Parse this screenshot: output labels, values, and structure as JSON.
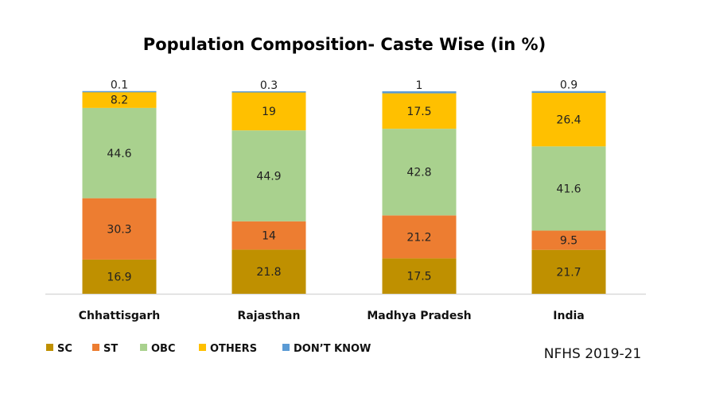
{
  "chart_data": {
    "type": "bar",
    "stacked": true,
    "title": "Population Composition- Caste Wise (in %)",
    "categories": [
      "Chhattisgarh",
      "Rajasthan",
      "Madhya Pradesh",
      "India"
    ],
    "series": [
      {
        "name": "SC",
        "color": "#BF9000",
        "values": [
          16.9,
          21.8,
          17.5,
          21.7
        ]
      },
      {
        "name": "ST",
        "color": "#ED7D31",
        "values": [
          30.3,
          14,
          21.2,
          9.5
        ]
      },
      {
        "name": "OBC",
        "color": "#A9D18E",
        "values": [
          44.6,
          44.9,
          42.8,
          41.6
        ]
      },
      {
        "name": "OTHERS",
        "color": "#FFC000",
        "values": [
          8.2,
          19,
          17.5,
          26.4
        ]
      },
      {
        "name": "DON’T KNOW",
        "color": "#5B9BD5",
        "values": [
          0.1,
          0.3,
          1,
          0.9
        ]
      }
    ],
    "ylim": [
      0,
      100
    ],
    "grid": false,
    "legend_position": "bottom-left",
    "source_note": "NFHS 2019-21"
  }
}
